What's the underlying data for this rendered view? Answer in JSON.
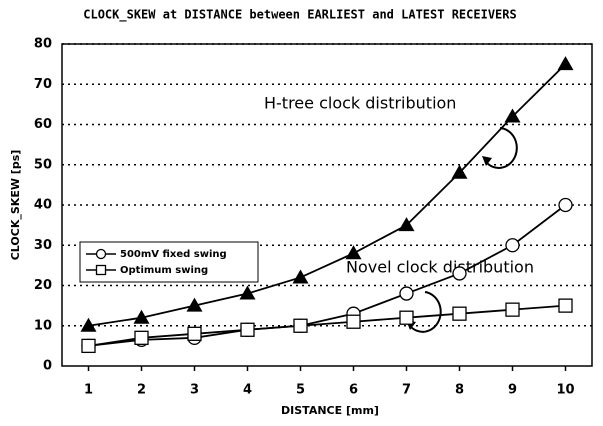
{
  "chart_data": {
    "type": "line",
    "title": "CLOCK_SKEW at DISTANCE between EARLIEST and LATEST RECEIVERS",
    "x_label": "DISTANCE [mm]",
    "y_label": "CLOCK_SKEW [ps]",
    "x": [
      1,
      2,
      3,
      4,
      5,
      6,
      7,
      8,
      9,
      10
    ],
    "xlim": [
      0.5,
      10.5
    ],
    "xticks": [
      1,
      2,
      3,
      4,
      5,
      6,
      7,
      8,
      9,
      10
    ],
    "ylim": [
      0,
      80
    ],
    "yticks": [
      0,
      10,
      20,
      30,
      40,
      50,
      60,
      70,
      80
    ],
    "grid": true,
    "legend": "center left",
    "series": [
      {
        "color": "#000000",
        "marker": "triangle",
        "values": [
          10,
          12,
          15,
          18,
          22,
          28,
          35,
          48,
          62,
          75
        ]
      },
      {
        "name": "500mV fixed swing",
        "color": "#000000",
        "marker": "circle",
        "values": [
          5,
          6.5,
          7,
          9,
          10,
          13,
          18,
          23,
          30,
          40
        ]
      },
      {
        "name": "Optimum swing",
        "color": "#000000",
        "marker": "square",
        "values": [
          5,
          7,
          8,
          9,
          10,
          11,
          12,
          13,
          14,
          15
        ]
      }
    ],
    "annotations": [
      "H-tree clock distribution",
      "Novel clock distribution"
    ]
  }
}
